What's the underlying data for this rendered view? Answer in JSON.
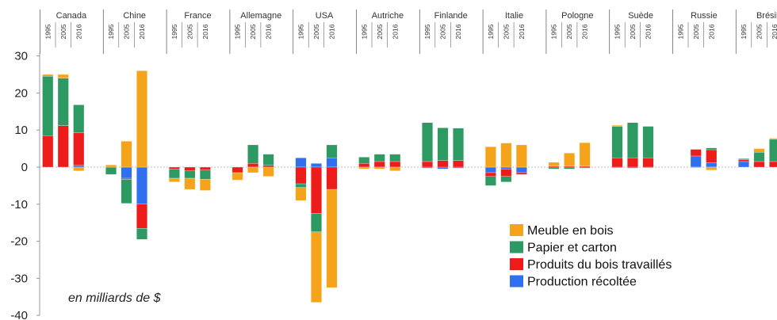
{
  "chart_data": {
    "type": "bar",
    "stacked": true,
    "title": "",
    "xlabel": "",
    "ylabel": "",
    "unit_note": "en milliards de $",
    "ylim": [
      -40,
      30
    ],
    "yticks": [
      30,
      20,
      10,
      0,
      -10,
      -20,
      -30,
      -40
    ],
    "years": [
      "1995",
      "2005",
      "2016"
    ],
    "colors": {
      "meuble": "#f5a31a",
      "papier": "#2e9a63",
      "produits": "#ee1b1b",
      "production": "#2f6ff0"
    },
    "legend": {
      "placement": "bottom-right",
      "entries": [
        {
          "key": "meuble",
          "label": "Meuble en bois"
        },
        {
          "key": "papier",
          "label": "Papier et carton"
        },
        {
          "key": "produits",
          "label": "Produits du bois travaillés"
        },
        {
          "key": "production",
          "label": "Production récoltée"
        }
      ]
    },
    "countries": [
      {
        "name": "Canada",
        "bars": [
          {
            "year": "1995",
            "production": 0,
            "produits": 8.5,
            "papier": 16.0,
            "meuble": 0.5
          },
          {
            "year": "2005",
            "production": 0,
            "produits": 11.2,
            "papier": 12.8,
            "meuble": 1.0
          },
          {
            "year": "2016",
            "production": 0.5,
            "produits": 8.8,
            "papier": 7.5,
            "meuble": -1.0
          }
        ]
      },
      {
        "name": "Chine",
        "bars": [
          {
            "year": "1995",
            "production": 0,
            "produits": 0,
            "papier": -2.0,
            "meuble": 0.6
          },
          {
            "year": "2005",
            "production": -3.0,
            "produits": -0.3,
            "papier": -6.5,
            "meuble": 7.0
          },
          {
            "year": "2016",
            "production": -10.0,
            "produits": -6.5,
            "papier": -3.0,
            "meuble": 26.0
          }
        ]
      },
      {
        "name": "France",
        "bars": [
          {
            "year": "1995",
            "production": 0,
            "produits": -0.5,
            "papier": -2.5,
            "meuble": -1.0
          },
          {
            "year": "2005",
            "production": 0,
            "produits": -1.0,
            "papier": -2.0,
            "meuble": -3.0
          },
          {
            "year": "2016",
            "production": 0,
            "produits": -0.8,
            "papier": -2.5,
            "meuble": -3.0
          }
        ]
      },
      {
        "name": "Allemagne",
        "bars": [
          {
            "year": "1995",
            "production": 0,
            "produits": -1.5,
            "papier": 0,
            "meuble": -2.0
          },
          {
            "year": "2005",
            "production": 0,
            "produits": 1.0,
            "papier": 5.0,
            "meuble": -1.5
          },
          {
            "year": "2016",
            "production": 0,
            "produits": 0.5,
            "papier": 3.0,
            "meuble": -2.5
          }
        ]
      },
      {
        "name": "USA",
        "bars": [
          {
            "year": "1995",
            "production": 2.5,
            "produits": -4.5,
            "papier": -1.0,
            "meuble": -3.5
          },
          {
            "year": "2005",
            "production": 1.0,
            "produits": -12.5,
            "papier": -5.0,
            "meuble": -19.0
          },
          {
            "year": "2016",
            "production": 2.5,
            "produits": -6.0,
            "papier": 3.5,
            "meuble": -26.5
          }
        ]
      },
      {
        "name": "Autriche",
        "bars": [
          {
            "year": "1995",
            "production": 0,
            "produits": 1.0,
            "papier": 1.7,
            "meuble": -0.5
          },
          {
            "year": "2005",
            "production": 0,
            "produits": 1.5,
            "papier": 2.0,
            "meuble": -0.5
          },
          {
            "year": "2016",
            "production": 0,
            "produits": 1.5,
            "papier": 2.0,
            "meuble": -1.0
          }
        ]
      },
      {
        "name": "Finlande",
        "bars": [
          {
            "year": "1995",
            "production": -0.3,
            "produits": 1.5,
            "papier": 10.5,
            "meuble": 0
          },
          {
            "year": "2005",
            "production": -0.5,
            "produits": 1.8,
            "papier": 8.8,
            "meuble": 0
          },
          {
            "year": "2016",
            "production": -0.3,
            "produits": 1.8,
            "papier": 8.7,
            "meuble": 0
          }
        ]
      },
      {
        "name": "Italie",
        "bars": [
          {
            "year": "1995",
            "production": -1.5,
            "produits": -1.0,
            "papier": -2.5,
            "meuble": 5.5
          },
          {
            "year": "2005",
            "production": -0.5,
            "produits": -2.0,
            "papier": -1.5,
            "meuble": 6.5
          },
          {
            "year": "2016",
            "production": -1.5,
            "produits": -0.5,
            "papier": 0,
            "meuble": 6.0
          }
        ]
      },
      {
        "name": "Pologne",
        "bars": [
          {
            "year": "1995",
            "production": 0,
            "produits": 0.3,
            "papier": -0.5,
            "meuble": 1.0
          },
          {
            "year": "2005",
            "production": 0,
            "produits": 0.3,
            "papier": -0.5,
            "meuble": 3.5
          },
          {
            "year": "2016",
            "production": 0,
            "produits": 0.3,
            "papier": -0.3,
            "meuble": 6.3
          }
        ]
      },
      {
        "name": "Suède",
        "bars": [
          {
            "year": "1995",
            "production": -0.2,
            "produits": 2.5,
            "papier": 8.5,
            "meuble": 0.3
          },
          {
            "year": "2005",
            "production": -0.3,
            "produits": 2.5,
            "papier": 9.5,
            "meuble": 0
          },
          {
            "year": "2016",
            "production": -0.2,
            "produits": 2.5,
            "papier": 8.5,
            "meuble": 0
          }
        ]
      },
      {
        "name": "Russie",
        "bars": [
          {
            "year": "1995",
            "production": 0,
            "produits": 0,
            "papier": 0,
            "meuble": 0
          },
          {
            "year": "2005",
            "production": 3.0,
            "produits": 1.8,
            "papier": 0,
            "meuble": -0.2
          },
          {
            "year": "2016",
            "production": 1.2,
            "produits": 3.5,
            "papier": 0.5,
            "meuble": -0.8
          }
        ]
      },
      {
        "name": "Brésil",
        "bars": [
          {
            "year": "1995",
            "production": 1.5,
            "produits": 0.5,
            "papier": 0.3,
            "meuble": 0
          },
          {
            "year": "2005",
            "production": 0,
            "produits": 1.5,
            "papier": 2.5,
            "meuble": 1.0
          },
          {
            "year": "2016",
            "production": 0,
            "produits": 1.5,
            "papier": 6.0,
            "meuble": 0.3
          }
        ]
      }
    ]
  }
}
